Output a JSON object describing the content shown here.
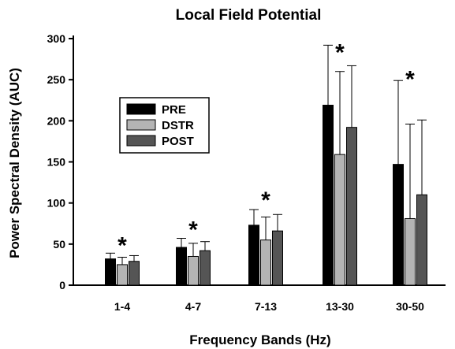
{
  "chart_data": {
    "type": "bar",
    "title": "Local Field Potential",
    "xlabel": "Frequency Bands (Hz)",
    "ylabel": "Power Spectral Density (AUC)",
    "ylim": [
      0,
      300
    ],
    "yticks": [
      0,
      50,
      100,
      150,
      200,
      250,
      300
    ],
    "categories": [
      "1-4",
      "4-7",
      "7-13",
      "13-30",
      "30-50"
    ],
    "series": [
      {
        "name": "PRE",
        "color": "#000000",
        "values": [
          32,
          46,
          73,
          219,
          147
        ],
        "errors": [
          7,
          11,
          19,
          73,
          102
        ]
      },
      {
        "name": "DSTR",
        "color": "#b4b4b4",
        "values": [
          25,
          35,
          55,
          159,
          81
        ],
        "errors": [
          9,
          16,
          28,
          101,
          115
        ]
      },
      {
        "name": "POST",
        "color": "#555555",
        "values": [
          29,
          42,
          66,
          192,
          110
        ],
        "errors": [
          7,
          11,
          20,
          75,
          91
        ]
      }
    ],
    "annotations": [
      {
        "category": "1-4",
        "text": "*",
        "y": 58
      },
      {
        "category": "4-7",
        "text": "*",
        "y": 77
      },
      {
        "category": "7-13",
        "text": "*",
        "y": 113
      },
      {
        "category": "13-30",
        "text": "*",
        "y": 293
      },
      {
        "category": "30-50",
        "text": "*",
        "y": 260
      }
    ],
    "legend": {
      "position": "center-left"
    },
    "grid": false
  }
}
